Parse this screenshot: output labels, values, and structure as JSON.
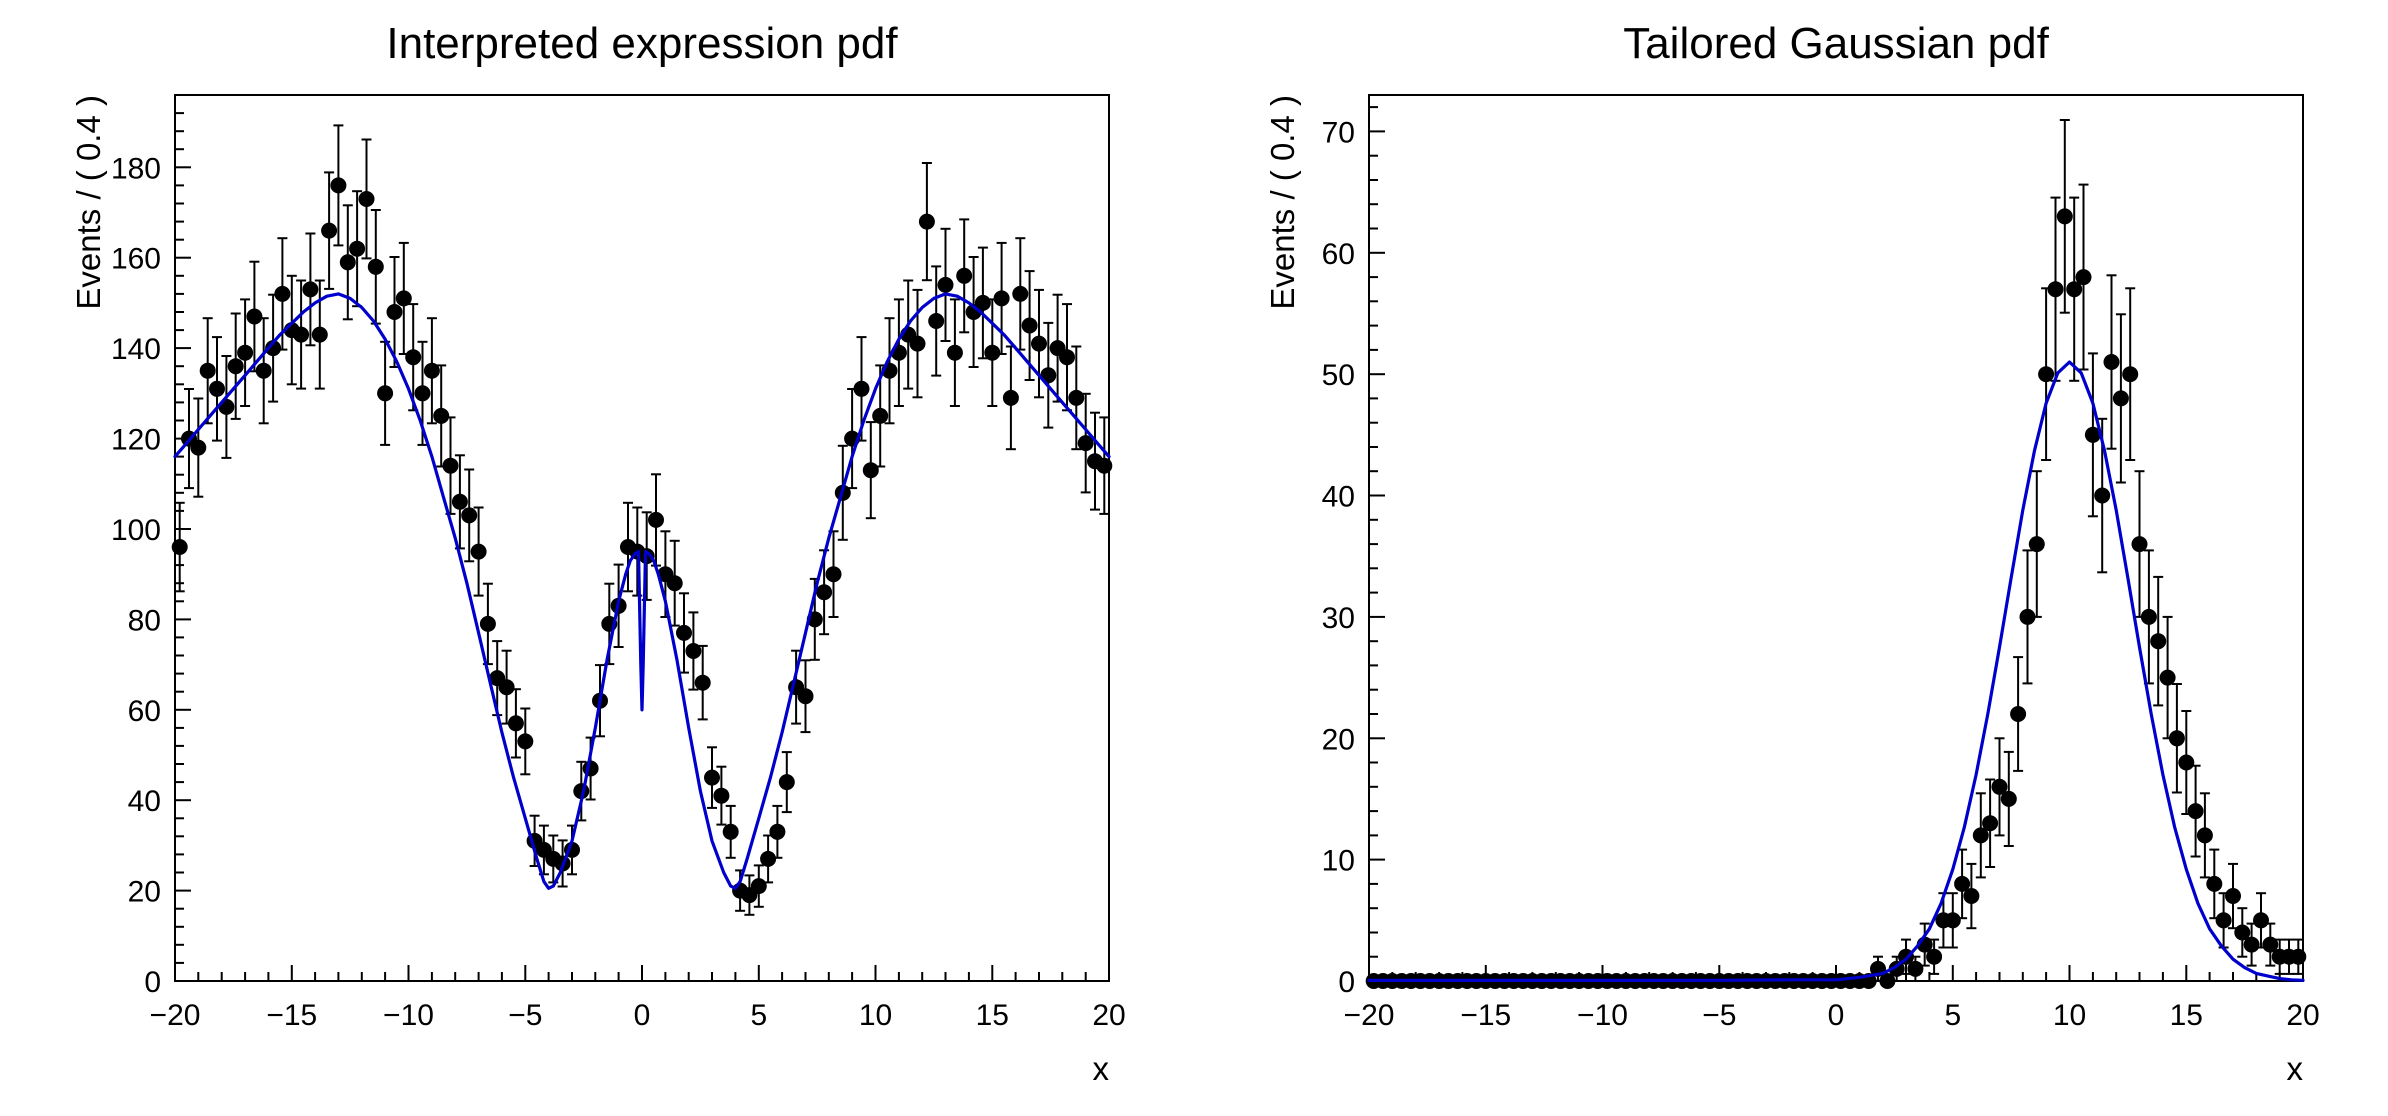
{
  "page": {
    "background": "#ffffff"
  },
  "chart_data": [
    {
      "name": "interpreted-expression-pdf",
      "type": "scatter",
      "title": "Interpreted expression pdf",
      "xlabel": "x",
      "ylabel": "Events / ( 0.4 )",
      "xlim": [
        -20,
        20
      ],
      "ylim": [
        0,
        196
      ],
      "x_ticks": [
        -20,
        -15,
        -10,
        -5,
        0,
        5,
        10,
        15,
        20
      ],
      "x_minor_step": 1,
      "y_ticks": [
        0,
        20,
        40,
        60,
        80,
        100,
        120,
        140,
        160,
        180
      ],
      "y_minor_step": 4,
      "grid": false,
      "legend": "none",
      "point_color": "#000000",
      "curve_color": "#0000cc",
      "points": {
        "x_start": -19.8,
        "x_step": 0.4,
        "error_type": "sqrt",
        "y": [
          96,
          120,
          118,
          135,
          131,
          127,
          136,
          139,
          147,
          135,
          140,
          152,
          144,
          143,
          153,
          143,
          166,
          176,
          159,
          162,
          173,
          158,
          130,
          148,
          151,
          138,
          130,
          135,
          125,
          114,
          106,
          103,
          95,
          79,
          67,
          65,
          57,
          53,
          31,
          29,
          27,
          26,
          29,
          42,
          47,
          62,
          79,
          83,
          96,
          95,
          94,
          102,
          90,
          88,
          77,
          73,
          66,
          45,
          41,
          33,
          20,
          19,
          21,
          27,
          33,
          44,
          65,
          63,
          80,
          86,
          90,
          108,
          120,
          131,
          113,
          125,
          135,
          139,
          143,
          141,
          168,
          146,
          154,
          139,
          156,
          148,
          150,
          139,
          151,
          129,
          152,
          145,
          141,
          134,
          140,
          138,
          129,
          119,
          115,
          114
        ]
      },
      "curve": {
        "x": [
          -20,
          -19.5,
          -19,
          -18.5,
          -18,
          -17.5,
          -17,
          -16.5,
          -16,
          -15.5,
          -15,
          -14.5,
          -14,
          -13.5,
          -13,
          -12.5,
          -12,
          -11.5,
          -11,
          -10.5,
          -10,
          -9.5,
          -9,
          -8.5,
          -8,
          -7.5,
          -7,
          -6.5,
          -6,
          -5.5,
          -5,
          -4.5,
          -4.2,
          -4,
          -3.8,
          -3.5,
          -3,
          -2.5,
          -2,
          -1.5,
          -1,
          -0.7,
          -0.5,
          -0.3,
          -0.15,
          -0.05,
          0,
          0.05,
          0.15,
          0.3,
          0.5,
          0.7,
          1,
          1.5,
          2,
          2.5,
          3,
          3.5,
          3.8,
          4,
          4.2,
          4.5,
          5,
          5.5,
          6,
          6.5,
          7,
          7.5,
          8,
          8.5,
          9,
          9.5,
          10,
          10.5,
          11,
          11.5,
          12,
          12.5,
          13,
          13.5,
          14,
          14.5,
          15,
          15.5,
          16,
          16.5,
          17,
          17.5,
          18,
          18.5,
          19,
          19.5,
          20
        ],
        "y": [
          116,
          119,
          122,
          125,
          128,
          131,
          134,
          137,
          140,
          143,
          145.5,
          148,
          150,
          151.5,
          152,
          151,
          149,
          146,
          142,
          137,
          131,
          124,
          116,
          107,
          98,
          88,
          77,
          66,
          55,
          45,
          36,
          27,
          22,
          20.5,
          21,
          24,
          31,
          42,
          56,
          71,
          84,
          90,
          93,
          94.5,
          95,
          70,
          60,
          70,
          95,
          94.5,
          93,
          90,
          84,
          71,
          56,
          42,
          31,
          24,
          21,
          20.5,
          22,
          27,
          36,
          45,
          55,
          66,
          77,
          88,
          98,
          107,
          116,
          124,
          131,
          137,
          142,
          146,
          149,
          151,
          152,
          151.5,
          150,
          148,
          145.5,
          143,
          140,
          137,
          134,
          131,
          128,
          125,
          122,
          119,
          116
        ]
      }
    },
    {
      "name": "tailored-gaussian-pdf",
      "type": "scatter",
      "title": "Tailored Gaussian pdf",
      "xlabel": "x",
      "ylabel": "Events / ( 0.4 )",
      "xlim": [
        -20,
        20
      ],
      "ylim": [
        0,
        73
      ],
      "x_ticks": [
        -20,
        -15,
        -10,
        -5,
        0,
        5,
        10,
        15,
        20
      ],
      "x_minor_step": 1,
      "y_ticks": [
        0,
        10,
        20,
        30,
        40,
        50,
        60,
        70
      ],
      "y_minor_step": 2,
      "grid": false,
      "legend": "none",
      "point_color": "#000000",
      "curve_color": "#0000cc",
      "points": {
        "x_start": -19.8,
        "x_step": 0.4,
        "error_type": "sqrt",
        "y": [
          0,
          0,
          0,
          0,
          0,
          0,
          0,
          0,
          0,
          0,
          0,
          0,
          0,
          0,
          0,
          0,
          0,
          0,
          0,
          0,
          0,
          0,
          0,
          0,
          0,
          0,
          0,
          0,
          0,
          0,
          0,
          0,
          0,
          0,
          0,
          0,
          0,
          0,
          0,
          0,
          0,
          0,
          0,
          0,
          0,
          0,
          0,
          0,
          0,
          0,
          0,
          0,
          0,
          0,
          1,
          0,
          1,
          2,
          1,
          3,
          2,
          5,
          5,
          8,
          7,
          12,
          13,
          16,
          15,
          22,
          30,
          36,
          50,
          57,
          63,
          57,
          58,
          45,
          40,
          51,
          48,
          50,
          36,
          30,
          28,
          25,
          20,
          18,
          14,
          12,
          8,
          5,
          7,
          4,
          3,
          5,
          3,
          2,
          2,
          2
        ]
      },
      "curve": {
        "x": [
          -20,
          -15,
          -10,
          -5,
          -2,
          0,
          1,
          2,
          2.5,
          3,
          3.5,
          4,
          4.5,
          5,
          5.5,
          6,
          6.5,
          7,
          7.5,
          8,
          8.5,
          9,
          9.5,
          10,
          10.5,
          11,
          11.5,
          12,
          12.5,
          13,
          13.5,
          14,
          14.5,
          15,
          15.5,
          16,
          16.5,
          17,
          17.5,
          18,
          18.5,
          19,
          19.5,
          20
        ],
        "y": [
          0.05,
          0.05,
          0.05,
          0.06,
          0.1,
          0.1,
          0.3,
          0.63,
          1.1,
          1.8,
          2.9,
          4.3,
          6.4,
          9.2,
          12.7,
          17,
          22,
          27.5,
          33.2,
          38.8,
          43.7,
          47.6,
          50.1,
          51,
          50.1,
          47.6,
          43.7,
          38.8,
          33.2,
          27.5,
          22,
          17,
          12.7,
          9.2,
          6.4,
          4.3,
          2.9,
          1.8,
          1.1,
          0.63,
          0.4,
          0.2,
          0.1,
          0.05
        ]
      }
    }
  ]
}
